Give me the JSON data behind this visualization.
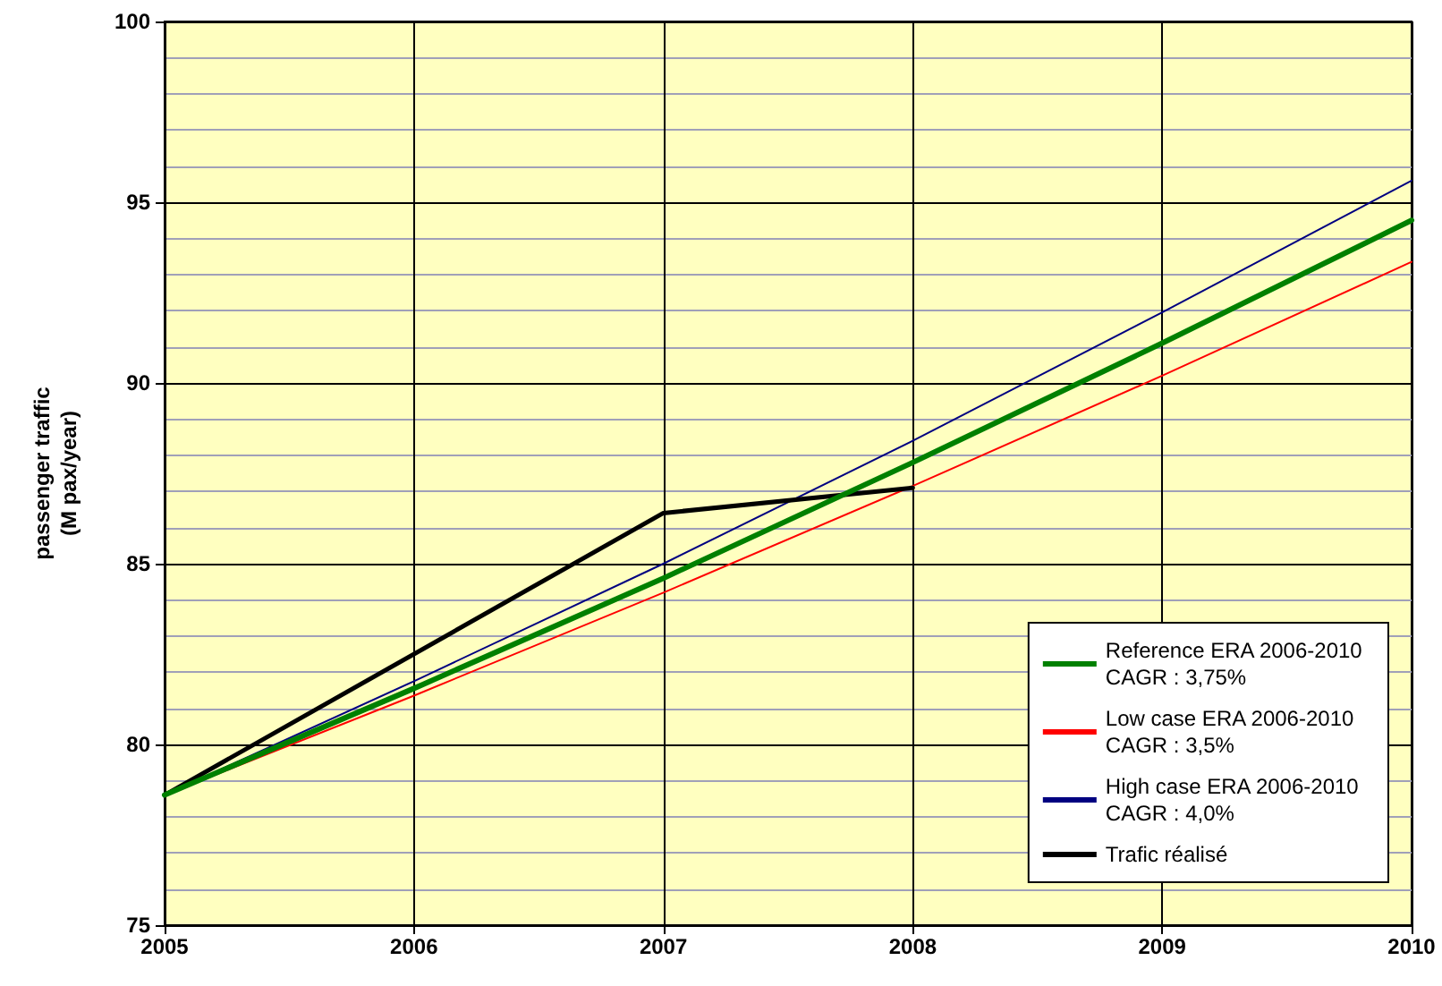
{
  "chart_data": {
    "type": "line",
    "ylabel": "passenger traffic\n(M pax/year)",
    "xlim": [
      2005,
      2010
    ],
    "xticks": [
      2005,
      2006,
      2007,
      2008,
      2009,
      2010
    ],
    "ylim": [
      75,
      100
    ],
    "yticks": [
      75,
      80,
      85,
      90,
      95,
      100
    ],
    "grid": true,
    "legend": "bottom right",
    "marker": "none",
    "line_style": "solid",
    "series": [
      {
        "name": "Reference ERA 2006-2010\nCAGR : 3,75%",
        "color": "#008000",
        "x": [
          2005,
          2006,
          2007,
          2008,
          2009,
          2010
        ],
        "values": [
          78.6,
          81.55,
          84.6,
          87.8,
          91.1,
          94.5
        ]
      },
      {
        "name": "Low case ERA 2006-2010\nCAGR : 3,5%",
        "color": "#ff0000",
        "x": [
          2005,
          2006,
          2007,
          2008,
          2009,
          2010
        ],
        "values": [
          78.6,
          81.35,
          84.2,
          87.15,
          90.2,
          93.35
        ]
      },
      {
        "name": "High case ERA 2006-2010\nCAGR : 4,0%",
        "color": "#000080",
        "x": [
          2005,
          2006,
          2007,
          2008,
          2009,
          2010
        ],
        "values": [
          78.6,
          81.75,
          85.0,
          88.4,
          91.95,
          95.6
        ]
      },
      {
        "name": "Trafic réalisé",
        "color": "#000000",
        "x": [
          2005,
          2007,
          2008
        ],
        "values": [
          78.6,
          86.4,
          87.1
        ]
      }
    ]
  }
}
